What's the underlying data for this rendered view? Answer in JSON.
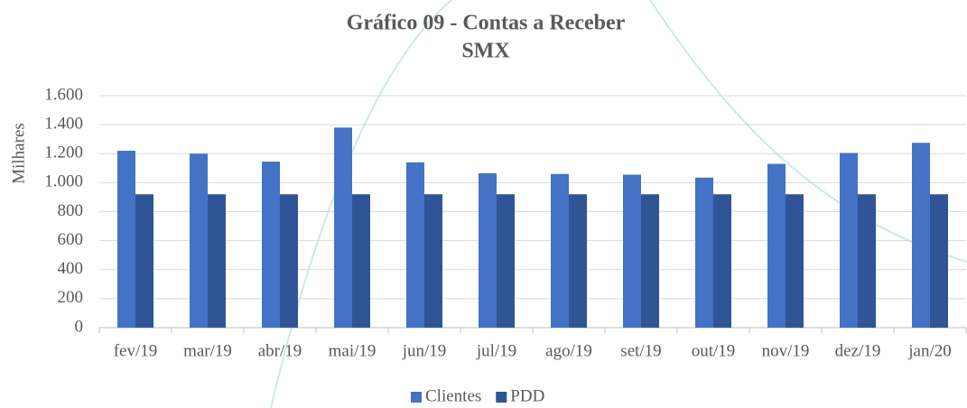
{
  "chart_data": {
    "type": "bar",
    "title": "Gráfico 09 - Contas a Receber",
    "subtitle": "SMX",
    "y_label": "Milhares",
    "categories": [
      "fev/19",
      "mar/19",
      "abr/19",
      "mai/19",
      "jun/19",
      "jul/19",
      "ago/19",
      "set/19",
      "out/19",
      "nov/19",
      "dez/19",
      "jan/20"
    ],
    "series": [
      {
        "name": "Clientes",
        "color": "#4472c4",
        "values": [
          1220,
          1200,
          1145,
          1380,
          1140,
          1065,
          1060,
          1055,
          1035,
          1130,
          1205,
          1275
        ]
      },
      {
        "name": "PDD",
        "color": "#2f5597",
        "values": [
          920,
          920,
          920,
          920,
          920,
          920,
          920,
          920,
          920,
          920,
          920,
          920
        ]
      }
    ],
    "ylim": [
      0,
      1600
    ],
    "yticks": [
      0,
      200,
      400,
      600,
      800,
      {
        "value": 1000,
        "label": "1.000"
      },
      {
        "value": 1200,
        "label": "1.200"
      },
      {
        "value": 1400,
        "label": "1.400"
      },
      {
        "value": 1600,
        "label": "1.600"
      }
    ],
    "grid": true,
    "legend": "bottom"
  }
}
